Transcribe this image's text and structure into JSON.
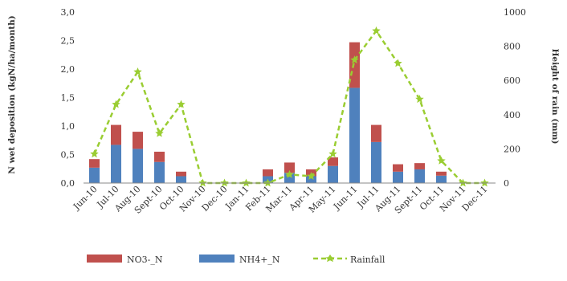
{
  "colors": {
    "no3": "#c0504d",
    "nh4": "#4f81bd",
    "rainfall": "#9acd32"
  },
  "chart_data": {
    "type": "bar",
    "categories": [
      "Jun-10",
      "Jul-10",
      "Aug-10",
      "Sept-10",
      "Oct-10",
      "Nov-10",
      "Dec-10",
      "Jan-11",
      "Feb-11",
      "Mar-11",
      "Apr-11",
      "May-11",
      "Jun-11",
      "Jul-11",
      "Aug-11",
      "Sept-11",
      "Oct-11",
      "Nov-11",
      "Dec-11"
    ],
    "series": [
      {
        "name": "NH4+_N",
        "kind": "stacked-bar",
        "axis": "left",
        "values": [
          0.27,
          0.67,
          0.6,
          0.37,
          0.12,
          0,
          0,
          0,
          0.12,
          0.18,
          0.12,
          0.3,
          1.67,
          0.72,
          0.2,
          0.24,
          0.13,
          0,
          0
        ]
      },
      {
        "name": "NO3-_N",
        "kind": "stacked-bar",
        "axis": "left",
        "values": [
          0.15,
          0.35,
          0.3,
          0.18,
          0.08,
          0,
          0,
          0,
          0.12,
          0.18,
          0.12,
          0.15,
          0.8,
          0.3,
          0.13,
          0.11,
          0.07,
          0,
          0
        ]
      },
      {
        "name": "Rainfall",
        "kind": "line",
        "axis": "right",
        "values": [
          170,
          460,
          650,
          290,
          460,
          0,
          0,
          0,
          0,
          50,
          40,
          170,
          720,
          890,
          700,
          490,
          130,
          0,
          0
        ]
      }
    ],
    "yleft": {
      "label": "N wet deposition (kgN/ha/month)",
      "lim": [
        0,
        3.0
      ],
      "ticks": [
        "0,0",
        "0,5",
        "1,0",
        "1,5",
        "2,0",
        "2,5",
        "3,0"
      ]
    },
    "yright": {
      "label": "Height of rain (mm)",
      "lim": [
        0,
        1000
      ],
      "ticks": [
        "0",
        "200",
        "400",
        "600",
        "800",
        "1000"
      ]
    },
    "xlabel": "",
    "grid": false,
    "legend_position": "bottom"
  }
}
